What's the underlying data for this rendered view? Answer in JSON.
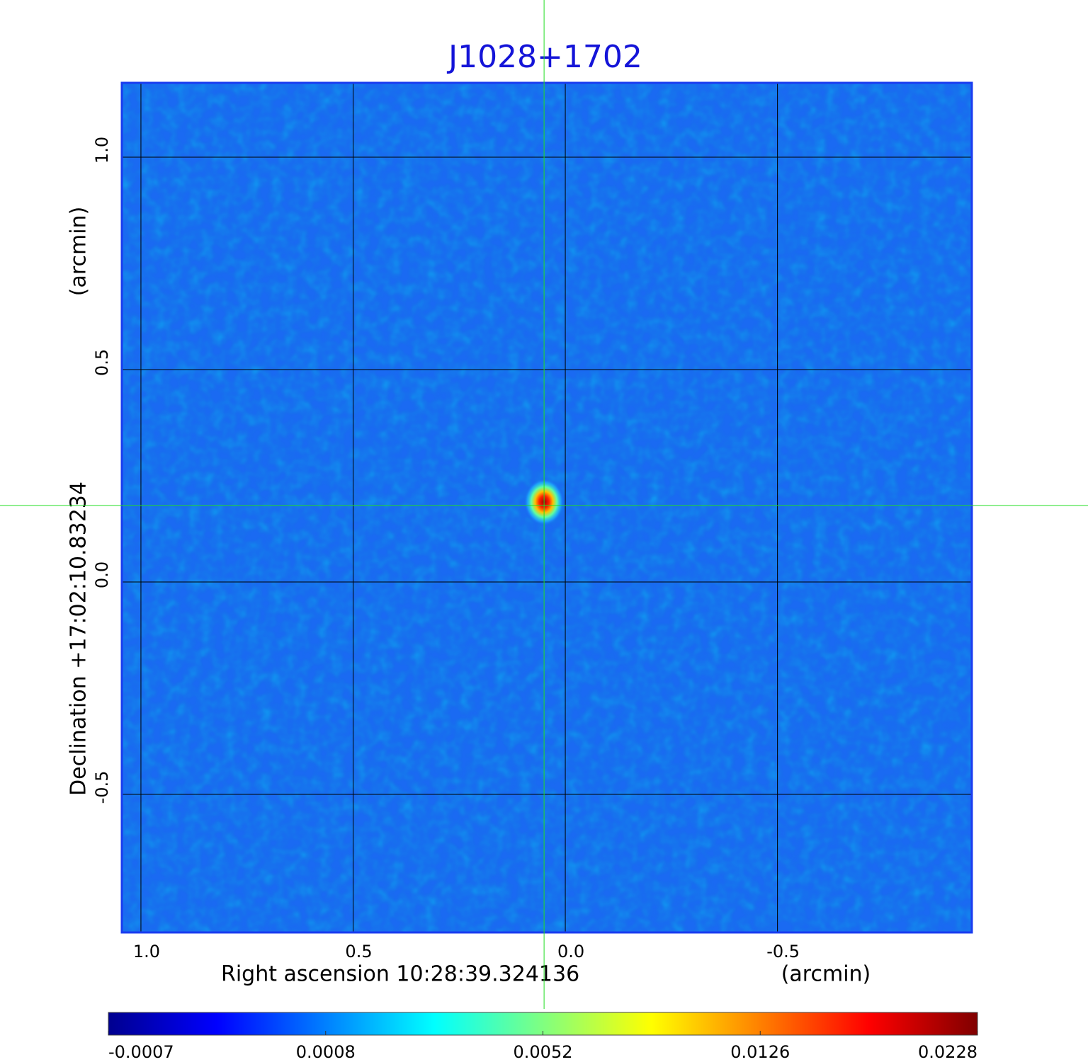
{
  "chart_data": {
    "type": "image",
    "title": "J1028+1702",
    "x_label": "Right ascension  10:28:39.324136",
    "x_unit": "(arcmin)",
    "y_label": "Declination  +17:02:10.83234",
    "y_unit": "(arcmin)",
    "xlim": [
      1.045,
      -0.958
    ],
    "ylim": [
      -0.825,
      1.175
    ],
    "xticks": [
      {
        "value": 1,
        "label": "1.0"
      },
      0.5,
      {
        "value": 0,
        "label": "0.0"
      },
      -0.5
    ],
    "yticks": [
      {
        "value": 1,
        "label": "1.0"
      },
      0.5,
      {
        "value": 0,
        "label": "0.0"
      },
      -0.5
    ],
    "grid": true,
    "image_color": "#1a6af2",
    "frame_color": "#1a3cf0",
    "title_color": "#1414d8",
    "source": {
      "x": 0.05,
      "y": 0.18,
      "value": 0.0228
    },
    "crosshair_color": "#22dd22",
    "colormap": [
      "#00008f",
      "#0000ff",
      "#0080ff",
      "#00ffff",
      "#80ff80",
      "#ffff00",
      "#ff8000",
      "#ff0000",
      "#800000"
    ],
    "colorbar_ticks": [
      -0.0007,
      0.0008,
      0.0052,
      0.0126,
      0.0228
    ]
  }
}
